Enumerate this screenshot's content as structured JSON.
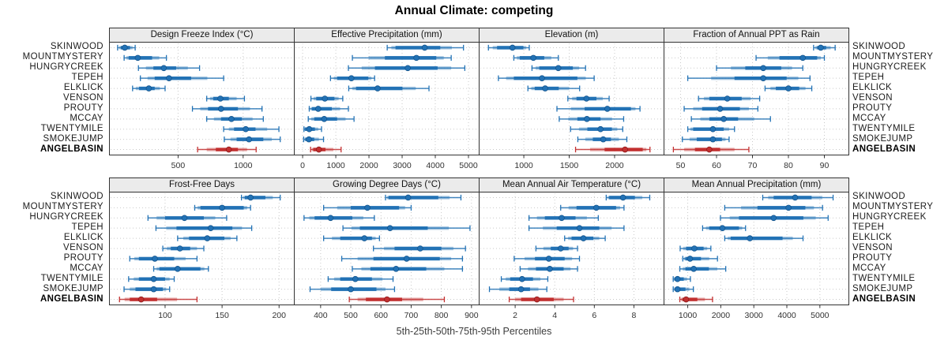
{
  "title": "Annual Climate: competing",
  "caption": "5th-25th-50th-75th-95th Percentiles",
  "sites": [
    "SKINWOOD",
    "MOUNTMYSTERY",
    "HUNGRYCREEK",
    "TEPEH",
    "ELKLICK",
    "VENSON",
    "PROUTY",
    "MCCAY",
    "TWENTYMILE",
    "SMOKEJUMP",
    "ANGELBASIN"
  ],
  "highlight_site": "ANGELBASIN",
  "colors": {
    "series": "#2272B5",
    "series_dot_stroke": "#14548C",
    "highlight": "#C23030",
    "highlight_dot_stroke": "#8E1B1B",
    "grid": "#c9c9c9",
    "strip_bg": "#ebebeb",
    "border": "#333333",
    "tick_text": "#333333"
  },
  "chart_data": {
    "type": "scatter",
    "subtype": "percentile-interval-dotplot",
    "percentiles": [
      5,
      25,
      50,
      75,
      95
    ],
    "legend_position": "none",
    "grid": "dotted",
    "panels": [
      {
        "key": "design-freeze-index",
        "title": "Design Freeze Index (°C)",
        "row": 0,
        "col": 0,
        "xdomain": [
          -25,
          1390
        ],
        "ticks": [
          500,
          1000
        ],
        "series": [
          [
            35,
            60,
            90,
            130,
            170
          ],
          [
            85,
            120,
            190,
            300,
            410
          ],
          [
            195,
            310,
            390,
            485,
            665
          ],
          [
            210,
            320,
            430,
            600,
            850
          ],
          [
            150,
            200,
            275,
            320,
            400
          ],
          [
            720,
            770,
            825,
            890,
            1010
          ],
          [
            610,
            730,
            830,
            960,
            1145
          ],
          [
            720,
            830,
            910,
            990,
            1155
          ],
          [
            850,
            930,
            1020,
            1095,
            1275
          ],
          [
            855,
            950,
            1045,
            1155,
            1285
          ],
          [
            650,
            790,
            890,
            960,
            1100
          ]
        ]
      },
      {
        "key": "effective-precipitation",
        "title": "Effective Precipitation (mm)",
        "row": 0,
        "col": 1,
        "xdomain": [
          -240,
          5310
        ],
        "ticks": [
          0,
          1000,
          2000,
          3000,
          4000,
          5000
        ],
        "series": [
          [
            2550,
            2800,
            3680,
            4150,
            4850
          ],
          [
            1500,
            2480,
            3430,
            4030,
            4480
          ],
          [
            1380,
            2180,
            3170,
            4070,
            4890
          ],
          [
            840,
            1040,
            1470,
            1980,
            2170
          ],
          [
            1390,
            1610,
            2260,
            3010,
            3810
          ],
          [
            250,
            410,
            670,
            960,
            1210
          ],
          [
            200,
            280,
            470,
            880,
            1380
          ],
          [
            170,
            350,
            650,
            1040,
            1550
          ],
          [
            40,
            70,
            200,
            370,
            570
          ],
          [
            30,
            80,
            190,
            350,
            630
          ],
          [
            240,
            320,
            490,
            690,
            1160
          ]
        ]
      },
      {
        "key": "elevation",
        "title": "Elevation (m)",
        "row": 0,
        "col": 2,
        "xdomain": [
          512,
          2540
        ],
        "ticks": [
          1000,
          1500,
          2000
        ],
        "series": [
          [
            610,
            705,
            875,
            995,
            1060
          ],
          [
            890,
            955,
            1105,
            1225,
            1380
          ],
          [
            1090,
            1170,
            1380,
            1540,
            1680
          ],
          [
            720,
            890,
            1200,
            1590,
            1775
          ],
          [
            1045,
            1120,
            1235,
            1385,
            1615
          ],
          [
            1485,
            1580,
            1690,
            1800,
            1940
          ],
          [
            1365,
            1670,
            1920,
            2180,
            2280
          ],
          [
            1390,
            1590,
            1695,
            1845,
            2100
          ],
          [
            1515,
            1700,
            1845,
            1970,
            2090
          ],
          [
            1595,
            1760,
            1875,
            1960,
            2135
          ],
          [
            1570,
            1890,
            2115,
            2310,
            2390
          ]
        ]
      },
      {
        "key": "fraction-ppt-rain",
        "title": "Fraction of Annual PPT as Rain",
        "row": 0,
        "col": 3,
        "xdomain": [
          45.5,
          96.7
        ],
        "ticks": [
          50,
          60,
          70,
          80,
          90
        ],
        "series": [
          [
            87,
            88,
            89,
            90.5,
            93
          ],
          [
            71,
            77.5,
            84,
            88,
            90
          ],
          [
            60,
            68,
            73,
            78,
            84
          ],
          [
            52,
            65,
            73,
            79.5,
            86
          ],
          [
            73.5,
            76.5,
            80,
            83,
            86.5
          ],
          [
            55,
            58,
            63,
            67,
            72
          ],
          [
            51,
            56,
            61,
            66.5,
            71.5
          ],
          [
            53,
            58,
            62,
            66,
            75
          ],
          [
            52,
            53.5,
            59,
            62,
            65
          ],
          [
            50.5,
            54.5,
            59,
            61.5,
            63.5
          ],
          [
            48,
            54,
            58,
            61,
            69
          ]
        ]
      },
      {
        "key": "frost-free-days",
        "title": "Frost-Free Days",
        "row": 1,
        "col": 0,
        "xdomain": [
          51.5,
          213
        ],
        "ticks": [
          100,
          150,
          200
        ],
        "series": [
          [
            167,
            170,
            175,
            188,
            201
          ],
          [
            126,
            131,
            150,
            169,
            175
          ],
          [
            85,
            100,
            117,
            134,
            154
          ],
          [
            92,
            110,
            140,
            159,
            176
          ],
          [
            111,
            121,
            137,
            152,
            163
          ],
          [
            98,
            105,
            113,
            122,
            134
          ],
          [
            69,
            77,
            91,
            108,
            128
          ],
          [
            90,
            95,
            111,
            131,
            138
          ],
          [
            68,
            77,
            90,
            100,
            108
          ],
          [
            64,
            74,
            90,
            98,
            104
          ],
          [
            60,
            69,
            79,
            93,
            128
          ]
        ]
      },
      {
        "key": "growing-degree-days",
        "title": "Growing Degree Days (°C)",
        "row": 1,
        "col": 1,
        "xdomain": [
          314,
          924
        ],
        "ticks": [
          400,
          500,
          600,
          700,
          800,
          900
        ],
        "series": [
          [
            615,
            625,
            690,
            790,
            865
          ],
          [
            410,
            500,
            555,
            660,
            700
          ],
          [
            345,
            380,
            433,
            505,
            578
          ],
          [
            474,
            530,
            630,
            755,
            895
          ],
          [
            410,
            465,
            545,
            570,
            595
          ],
          [
            575,
            645,
            730,
            800,
            880
          ],
          [
            470,
            575,
            685,
            795,
            870
          ],
          [
            505,
            565,
            650,
            750,
            870
          ],
          [
            425,
            465,
            515,
            570,
            640
          ],
          [
            365,
            435,
            500,
            585,
            645
          ],
          [
            495,
            550,
            620,
            670,
            810
          ]
        ]
      },
      {
        "key": "mean-annual-air-temp",
        "title": "Mean Annual Air Temperature (°C)",
        "row": 1,
        "col": 2,
        "xdomain": [
          0.2,
          9.5
        ],
        "ticks": [
          2,
          4,
          6,
          8
        ],
        "series": [
          [
            6.6,
            6.75,
            7.45,
            8.05,
            8.8
          ],
          [
            4.3,
            5.1,
            6.1,
            7.1,
            7.5
          ],
          [
            2.7,
            3.5,
            4.35,
            5.05,
            6.2
          ],
          [
            2.7,
            4.1,
            5.25,
            6.25,
            7.5
          ],
          [
            4.5,
            4.85,
            5.45,
            5.95,
            6.55
          ],
          [
            3.05,
            3.8,
            4.3,
            4.7,
            5.15
          ],
          [
            1.95,
            3.0,
            3.7,
            4.5,
            5.25
          ],
          [
            2.25,
            3.05,
            3.75,
            4.45,
            5.15
          ],
          [
            1.3,
            1.75,
            2.35,
            2.9,
            3.65
          ],
          [
            0.7,
            1.7,
            2.3,
            2.75,
            3.6
          ],
          [
            1.7,
            2.3,
            3.1,
            3.95,
            4.95
          ]
        ]
      },
      {
        "key": "mean-annual-precip",
        "title": "Mean Annual Precipitation (mm)",
        "row": 1,
        "col": 3,
        "xdomain": [
          293,
          5865
        ],
        "ticks": [
          1000,
          2000,
          3000,
          4000,
          5000
        ],
        "series": [
          [
            3270,
            3600,
            4250,
            4750,
            5400
          ],
          [
            2120,
            3110,
            4050,
            4560,
            5080
          ],
          [
            1990,
            2550,
            3600,
            4500,
            5250
          ],
          [
            1450,
            1650,
            2050,
            2550,
            2750
          ],
          [
            2120,
            2300,
            2880,
            3870,
            4490
          ],
          [
            770,
            950,
            1200,
            1480,
            1700
          ],
          [
            850,
            930,
            1070,
            1400,
            1900
          ],
          [
            760,
            930,
            1180,
            1640,
            2150
          ],
          [
            560,
            600,
            690,
            880,
            1080
          ],
          [
            560,
            610,
            690,
            930,
            1170
          ],
          [
            760,
            840,
            950,
            1290,
            1750
          ]
        ]
      }
    ]
  }
}
